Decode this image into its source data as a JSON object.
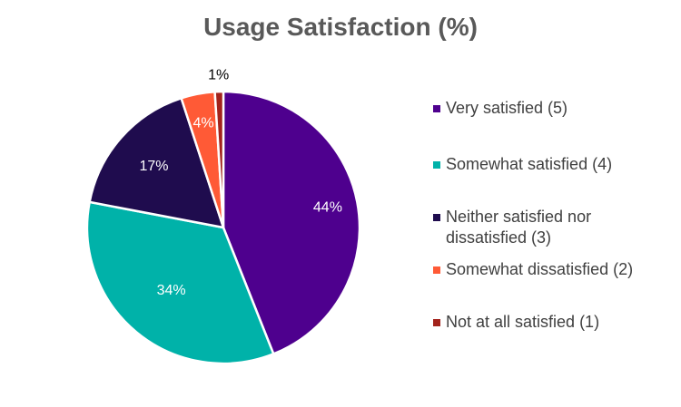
{
  "chart_data": {
    "type": "pie",
    "title": "Usage Satisfaction (%)",
    "categories": [
      "Very satisfied (5)",
      "Somewhat satisfied (4)",
      "Neither satisfied nor dissatisfied (3)",
      "Somewhat dissatisfied (2)",
      "Not at all satisfied (1)"
    ],
    "values": [
      44,
      34,
      17,
      4,
      1
    ],
    "value_labels": [
      "44%",
      "34%",
      "17%",
      "4%",
      "1%"
    ],
    "colors": [
      "#4e008e",
      "#00b2a9",
      "#1f0c4e",
      "#ff5a36",
      "#a3231c"
    ],
    "legend_position": "right"
  }
}
